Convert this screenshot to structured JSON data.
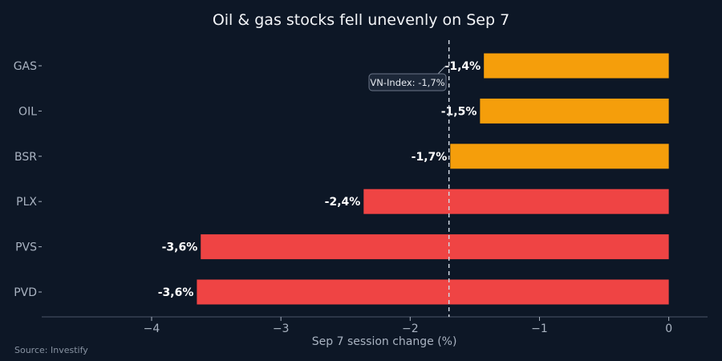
{
  "title": "Oil & gas stocks fell unevenly on Sep 7",
  "source": "Source: Investify",
  "colors": {
    "background": "#0d1726",
    "above_index": "#f59e0b",
    "below_index": "#ef4444",
    "axis": "#4a5568",
    "text": "#f2f4f7",
    "muted": "#a9b3c1"
  },
  "chart_data": {
    "type": "bar",
    "orientation": "horizontal",
    "title": "Oil & gas stocks fell unevenly on Sep 7",
    "xlabel": "Sep 7 session change (%)",
    "ylabel": "",
    "xlim": [
      -4.85,
      0.3
    ],
    "xticks": [
      -4,
      -3,
      -2,
      -1,
      0
    ],
    "xtick_labels": [
      "−4",
      "−3",
      "−2",
      "−1",
      "0"
    ],
    "grid": false,
    "categories": [
      "GAS",
      "OIL",
      "BSR",
      "PLX",
      "PVS",
      "PVD"
    ],
    "values": [
      -1.43,
      -1.46,
      -1.69,
      -2.36,
      -3.62,
      -3.65
    ],
    "data_labels": [
      "-1,4%",
      "-1,5%",
      "-1,7%",
      "-2,4%",
      "-3,6%",
      "-3,6%"
    ],
    "bar_colors": [
      "#f59e0b",
      "#f59e0b",
      "#f59e0b",
      "#ef4444",
      "#ef4444",
      "#ef4444"
    ],
    "reference_line": {
      "value": -1.7,
      "label": "VN-Index: -1,7%",
      "style": "dashed"
    }
  }
}
